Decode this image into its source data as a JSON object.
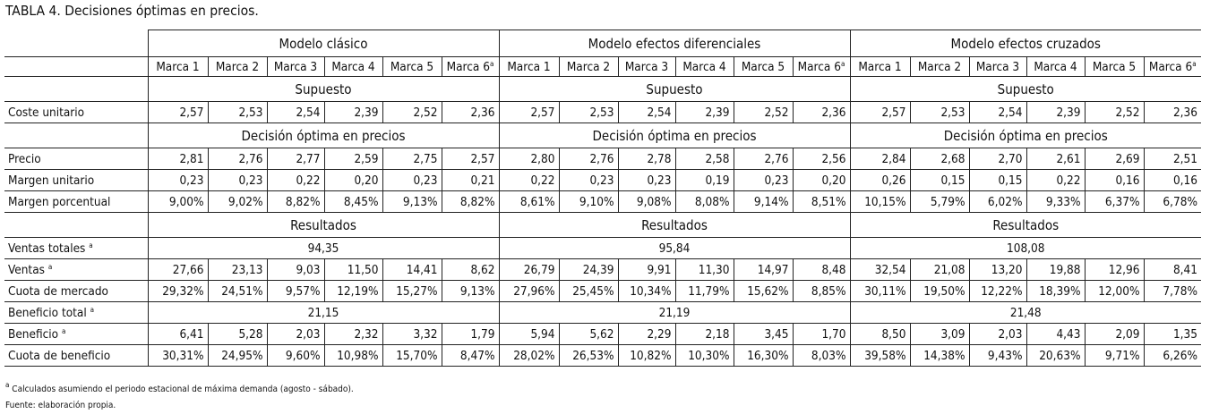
{
  "title": "TABLA 4. Decisiones óptimas en precios.",
  "models": [
    "Modelo clásico",
    "Modelo efectos diferenciales",
    "Modelo efectos cruzados"
  ],
  "brands": [
    "Marca 1",
    "Marca 2",
    "Marca 3",
    "Marca 4",
    "Marca 5",
    "Marca 6"
  ],
  "footnote_mark": "a",
  "rows": [
    {
      "type": "section",
      "text": "Supuesto"
    },
    {
      "type": "data",
      "label": "Coste unitario",
      "sup": false,
      "cells": [
        [
          "2,57",
          "2,53",
          "2,54",
          "2,39",
          "2,52",
          "2,36"
        ],
        [
          "2,57",
          "2,53",
          "2,54",
          "2,39",
          "2,52",
          "2,36"
        ],
        [
          "2,57",
          "2,53",
          "2,54",
          "2,39",
          "2,52",
          "2,36"
        ]
      ]
    },
    {
      "type": "section",
      "text": "Decisión óptima en precios"
    },
    {
      "type": "data",
      "label": "Precio",
      "sup": false,
      "cells": [
        [
          "2,81",
          "2,76",
          "2,77",
          "2,59",
          "2,75",
          "2,57"
        ],
        [
          "2,80",
          "2,76",
          "2,78",
          "2,58",
          "2,76",
          "2,56"
        ],
        [
          "2,84",
          "2,68",
          "2,70",
          "2,61",
          "2,69",
          "2,51"
        ]
      ]
    },
    {
      "type": "data",
      "label": "Margen unitario",
      "sup": false,
      "cells": [
        [
          "0,23",
          "0,23",
          "0,22",
          "0,20",
          "0,23",
          "0,21"
        ],
        [
          "0,22",
          "0,23",
          "0,23",
          "0,19",
          "0,23",
          "0,20"
        ],
        [
          "0,26",
          "0,15",
          "0,15",
          "0,22",
          "0,16",
          "0,16"
        ]
      ]
    },
    {
      "type": "data",
      "label": "Margen porcentual",
      "sup": false,
      "cells": [
        [
          "9,00%",
          "9,02%",
          "8,82%",
          "8,45%",
          "9,13%",
          "8,82%"
        ],
        [
          "8,61%",
          "9,10%",
          "9,08%",
          "8,08%",
          "9,14%",
          "8,51%"
        ],
        [
          "10,15%",
          "5,79%",
          "6,02%",
          "9,33%",
          "6,37%",
          "6,78%"
        ]
      ]
    },
    {
      "type": "section",
      "text": "Resultados"
    },
    {
      "type": "total",
      "label": "Ventas totales",
      "sup": true,
      "values": [
        "94,35",
        "95,84",
        "108,08"
      ]
    },
    {
      "type": "data",
      "label": "Ventas",
      "sup": true,
      "cells": [
        [
          "27,66",
          "23,13",
          "9,03",
          "11,50",
          "14,41",
          "8,62"
        ],
        [
          "26,79",
          "24,39",
          "9,91",
          "11,30",
          "14,97",
          "8,48"
        ],
        [
          "32,54",
          "21,08",
          "13,20",
          "19,88",
          "12,96",
          "8,41"
        ]
      ]
    },
    {
      "type": "data",
      "label": "Cuota de mercado",
      "sup": false,
      "cells": [
        [
          "29,32%",
          "24,51%",
          "9,57%",
          "12,19%",
          "15,27%",
          "9,13%"
        ],
        [
          "27,96%",
          "25,45%",
          "10,34%",
          "11,79%",
          "15,62%",
          "8,85%"
        ],
        [
          "30,11%",
          "19,50%",
          "12,22%",
          "18,39%",
          "12,00%",
          "7,78%"
        ]
      ]
    },
    {
      "type": "total",
      "label": "Beneficio total",
      "sup": true,
      "values": [
        "21,15",
        "21,19",
        "21,48"
      ]
    },
    {
      "type": "data",
      "label": "Beneficio",
      "sup": true,
      "cells": [
        [
          "6,41",
          "5,28",
          "2,03",
          "2,32",
          "3,32",
          "1,79"
        ],
        [
          "5,94",
          "5,62",
          "2,29",
          "2,18",
          "3,45",
          "1,70"
        ],
        [
          "8,50",
          "3,09",
          "2,03",
          "4,43",
          "2,09",
          "1,35"
        ]
      ]
    },
    {
      "type": "data",
      "label": "Cuota de beneficio",
      "sup": false,
      "cells": [
        [
          "30,31%",
          "24,95%",
          "9,60%",
          "10,98%",
          "15,70%",
          "8,47%"
        ],
        [
          "28,02%",
          "26,53%",
          "10,82%",
          "10,30%",
          "16,30%",
          "8,03%"
        ],
        [
          "39,58%",
          "14,38%",
          "9,43%",
          "20,63%",
          "9,71%",
          "6,26%"
        ]
      ]
    }
  ],
  "notes": {
    "note1": "Calculados asumiendo el periodo estacional de máxima demanda (agosto - sábado).",
    "note2": "Fuente: elaboración propia."
  }
}
